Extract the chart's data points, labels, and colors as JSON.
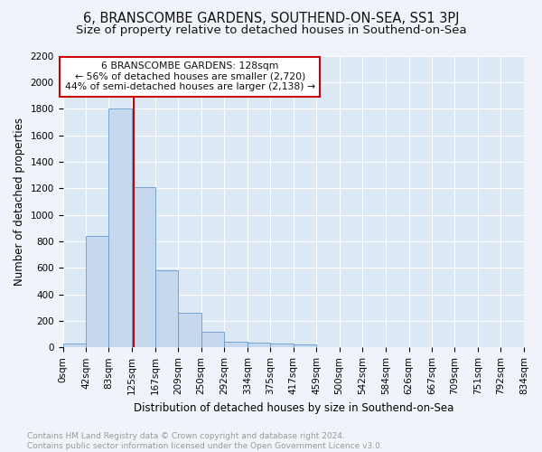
{
  "title": "6, BRANSCOMBE GARDENS, SOUTHEND-ON-SEA, SS1 3PJ",
  "subtitle": "Size of property relative to detached houses in Southend-on-Sea",
  "xlabel": "Distribution of detached houses by size in Southend-on-Sea",
  "ylabel": "Number of detached properties",
  "bar_edges": [
    0,
    42,
    83,
    125,
    167,
    209,
    250,
    292,
    334,
    375,
    417,
    459,
    500,
    542,
    584,
    626,
    667,
    709,
    751,
    792,
    834
  ],
  "bar_heights": [
    30,
    840,
    1800,
    1210,
    580,
    258,
    115,
    45,
    38,
    28,
    20,
    0,
    0,
    0,
    0,
    0,
    0,
    0,
    0,
    0
  ],
  "bar_color": "#c5d8ee",
  "bar_edge_color": "#6699cc",
  "red_line_x": 128,
  "annotation_line1": "6 BRANSCOMBE GARDENS: 128sqm",
  "annotation_line2": "← 56% of detached houses are smaller (2,720)",
  "annotation_line3": "44% of semi-detached houses are larger (2,138) →",
  "annotation_box_facecolor": "#ffffff",
  "annotation_border_color": "#cc0000",
  "ylim": [
    0,
    2200
  ],
  "yticks": [
    0,
    200,
    400,
    600,
    800,
    1000,
    1200,
    1400,
    1600,
    1800,
    2000,
    2200
  ],
  "xtick_labels": [
    "0sqm",
    "42sqm",
    "83sqm",
    "125sqm",
    "167sqm",
    "209sqm",
    "250sqm",
    "292sqm",
    "334sqm",
    "375sqm",
    "417sqm",
    "459sqm",
    "500sqm",
    "542sqm",
    "584sqm",
    "626sqm",
    "667sqm",
    "709sqm",
    "751sqm",
    "792sqm",
    "834sqm"
  ],
  "ax_background_color": "#dde8f5",
  "grid_color": "#ffffff",
  "fig_background_color": "#f0f4fa",
  "footer_text": "Contains HM Land Registry data © Crown copyright and database right 2024.\nContains public sector information licensed under the Open Government Licence v3.0.",
  "title_fontsize": 10.5,
  "subtitle_fontsize": 9.5,
  "axis_label_fontsize": 8.5,
  "tick_fontsize": 7.5,
  "red_line_color": "#cc0000",
  "footer_fontsize": 6.5,
  "footer_color": "#999999"
}
